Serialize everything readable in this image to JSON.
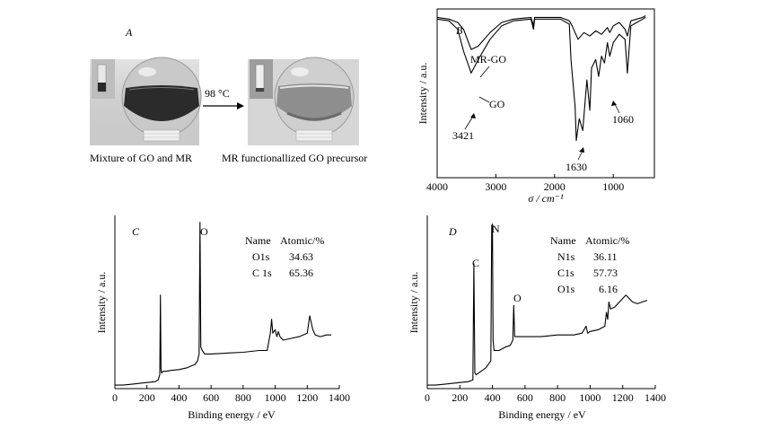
{
  "panel_a": {
    "letter": "A",
    "arrow_label": "98 °C",
    "caption_left": "Mixture of GO and MR",
    "caption_right": "MR functionallized GO precursor"
  },
  "chart_data": [
    {
      "id": "B",
      "type": "line",
      "letter": "B",
      "xlabel": "σ / cm⁻¹",
      "ylabel": "Intensity / a.u.",
      "xlim": [
        4000,
        300
      ],
      "x_reversed": true,
      "xticks": [
        4000,
        3000,
        2000,
        1000
      ],
      "series": [
        {
          "name": "MR-GO",
          "x": [
            4000,
            3800,
            3650,
            3550,
            3421,
            3300,
            3100,
            2900,
            2700,
            2400,
            2360,
            2340,
            2200,
            1900,
            1750,
            1700,
            1650,
            1600,
            1500,
            1400,
            1300,
            1200,
            1100,
            1060,
            1000,
            900,
            800,
            760,
            700,
            600,
            500,
            450
          ],
          "y": [
            95,
            94,
            92,
            88,
            76,
            78,
            86,
            92,
            94,
            95,
            90,
            95,
            95,
            95,
            93,
            90,
            86,
            82,
            86,
            84,
            87,
            85,
            89,
            86,
            90,
            92,
            88,
            84,
            93,
            94,
            95,
            96
          ]
        },
        {
          "name": "GO",
          "x": [
            4000,
            3800,
            3650,
            3550,
            3421,
            3300,
            3100,
            2900,
            2700,
            2400,
            2360,
            2340,
            2200,
            1900,
            1750,
            1720,
            1650,
            1630,
            1580,
            1520,
            1450,
            1400,
            1370,
            1300,
            1250,
            1200,
            1150,
            1100,
            1060,
            1000,
            900,
            800,
            760,
            700,
            600,
            500,
            450
          ],
          "y": [
            94,
            93,
            88,
            75,
            62,
            70,
            82,
            90,
            93,
            94,
            88,
            94,
            94,
            94,
            91,
            70,
            42,
            22,
            35,
            28,
            58,
            40,
            65,
            70,
            60,
            72,
            68,
            80,
            72,
            80,
            85,
            82,
            62,
            90,
            92,
            94,
            95
          ]
        }
      ],
      "annotations": [
        {
          "text": "MR-GO"
        },
        {
          "text": "GO"
        },
        {
          "text": "3421"
        },
        {
          "text": "1630"
        },
        {
          "text": "1060"
        }
      ]
    },
    {
      "id": "C",
      "type": "line",
      "letter": "C",
      "xlabel": "Binding energy / eV",
      "ylabel": "Intensity / a.u.",
      "xlim": [
        0,
        1400
      ],
      "xticks": [
        0,
        200,
        400,
        600,
        800,
        1000,
        1200,
        1400
      ],
      "peak_labels": [
        {
          "text": "O"
        }
      ],
      "table": {
        "header": [
          "Name",
          "Atomic/%"
        ],
        "rows": [
          [
            "O1s",
            "34.63"
          ],
          [
            "C 1s",
            "65.36"
          ]
        ]
      },
      "series": [
        {
          "name": "",
          "x": [
            0,
            50,
            100,
            150,
            200,
            250,
            270,
            280,
            284,
            288,
            292,
            300,
            320,
            350,
            400,
            450,
            500,
            515,
            525,
            531,
            536,
            545,
            560,
            600,
            700,
            800,
            900,
            950,
            970,
            978,
            985,
            1000,
            1010,
            1020,
            1030,
            1050,
            1100,
            1150,
            1200,
            1215,
            1225,
            1235,
            1250,
            1280,
            1320,
            1350
          ],
          "y": [
            2,
            2,
            2.5,
            3,
            3.5,
            4,
            5,
            8,
            54,
            11,
            9,
            10,
            10,
            10.5,
            11,
            12,
            14,
            16,
            20,
            96,
            24,
            22,
            20,
            20,
            20.5,
            21,
            22,
            22,
            32,
            40,
            32,
            34,
            30,
            33,
            30,
            28,
            29,
            30,
            32,
            42,
            38,
            34,
            31,
            30,
            31,
            31
          ]
        }
      ]
    },
    {
      "id": "D",
      "type": "line",
      "letter": "D",
      "xlabel": "Binding energy / eV",
      "ylabel": "Intensity / a.u.",
      "xlim": [
        0,
        1400
      ],
      "xticks": [
        0,
        200,
        400,
        600,
        800,
        1000,
        1200,
        1400
      ],
      "peak_labels": [
        {
          "text": "C"
        },
        {
          "text": "N"
        },
        {
          "text": "O"
        }
      ],
      "table": {
        "header": [
          "Name",
          "Atomic/%"
        ],
        "rows": [
          [
            "N1s",
            "36.11"
          ],
          [
            "C1s",
            "57.73"
          ],
          [
            "O1s",
            "6.16"
          ]
        ]
      },
      "series": [
        {
          "name": "",
          "x": [
            0,
            50,
            100,
            150,
            200,
            250,
            280,
            286,
            292,
            300,
            330,
            360,
            390,
            396,
            400,
            404,
            410,
            440,
            480,
            510,
            525,
            531,
            537,
            550,
            600,
            700,
            800,
            900,
            950,
            975,
            985,
            1000,
            1050,
            1090,
            1100,
            1108,
            1115,
            1125,
            1150,
            1200,
            1220,
            1240,
            1260,
            1290,
            1320,
            1350
          ],
          "y": [
            2,
            2,
            2.5,
            3,
            3.5,
            4,
            5,
            72,
            9,
            8,
            10,
            12,
            16,
            94,
            95,
            28,
            22,
            22,
            24,
            25,
            28,
            48,
            30,
            30,
            30,
            30,
            31,
            31,
            32,
            36,
            32,
            33,
            34,
            36,
            44,
            40,
            50,
            46,
            47,
            52,
            54,
            52,
            50,
            49,
            50,
            51
          ]
        }
      ]
    }
  ]
}
